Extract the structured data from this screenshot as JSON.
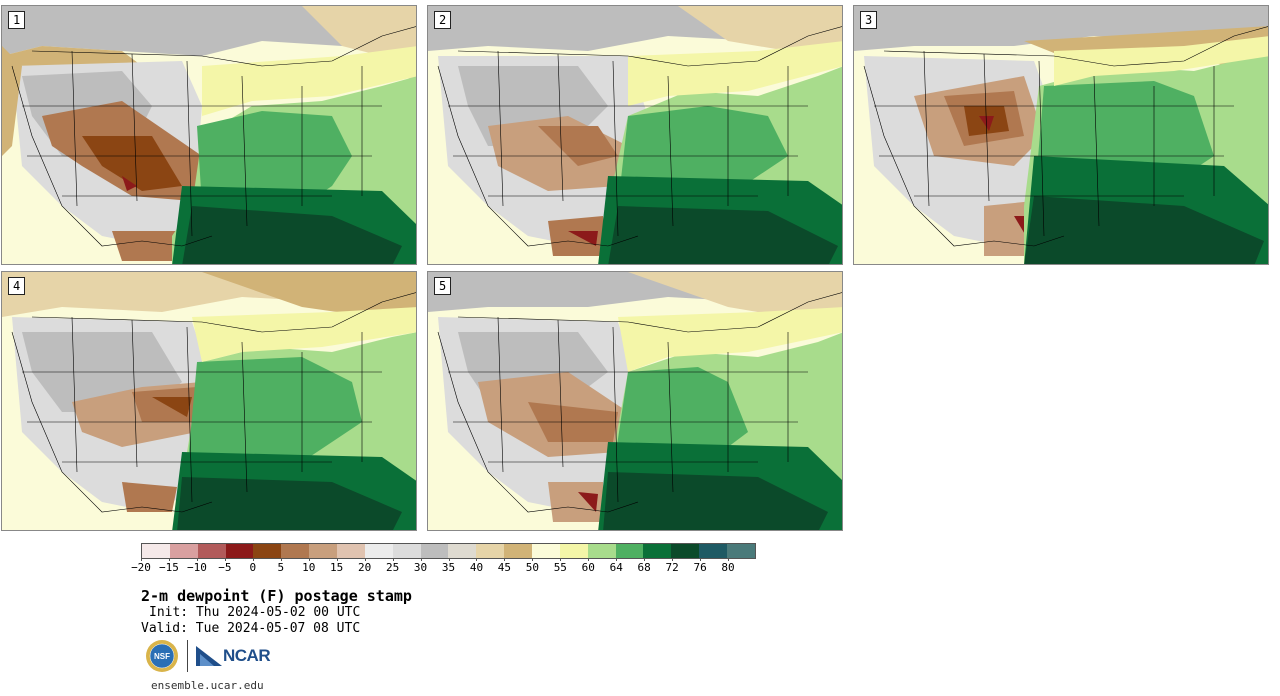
{
  "panels": [
    {
      "label": "1"
    },
    {
      "label": "2"
    },
    {
      "label": "3"
    },
    {
      "label": "4"
    },
    {
      "label": "5"
    }
  ],
  "colorbar": {
    "colors": [
      "#f5e9e9",
      "#d9a0a0",
      "#b25b5b",
      "#8c1a1a",
      "#8b4513",
      "#b07850",
      "#c89f7d",
      "#e0c3b0",
      "#ececec",
      "#dcdcdc",
      "#bdbdbd",
      "#dedad0",
      "#e6d4a8",
      "#d1b377",
      "#fbfbd9",
      "#f4f6a8",
      "#a8dc8c",
      "#4fb062",
      "#0a7038",
      "#0b4a2a",
      "#1e5a64",
      "#4a7a7a"
    ],
    "ticks": [
      "−20",
      "−15",
      "−10",
      "−5",
      "0",
      "5",
      "10",
      "15",
      "20",
      "25",
      "30",
      "35",
      "40",
      "45",
      "50",
      "55",
      "60",
      "64",
      "68",
      "72",
      "76",
      "80"
    ]
  },
  "title": "2-m dewpoint (F) postage stamp",
  "init": "Init: Thu 2024-05-02 00 UTC",
  "valid": "Valid: Tue 2024-05-07 08 UTC",
  "logos": {
    "nsf": "NSF",
    "ncar": "NCAR"
  },
  "site": "ensemble.ucar.edu"
}
